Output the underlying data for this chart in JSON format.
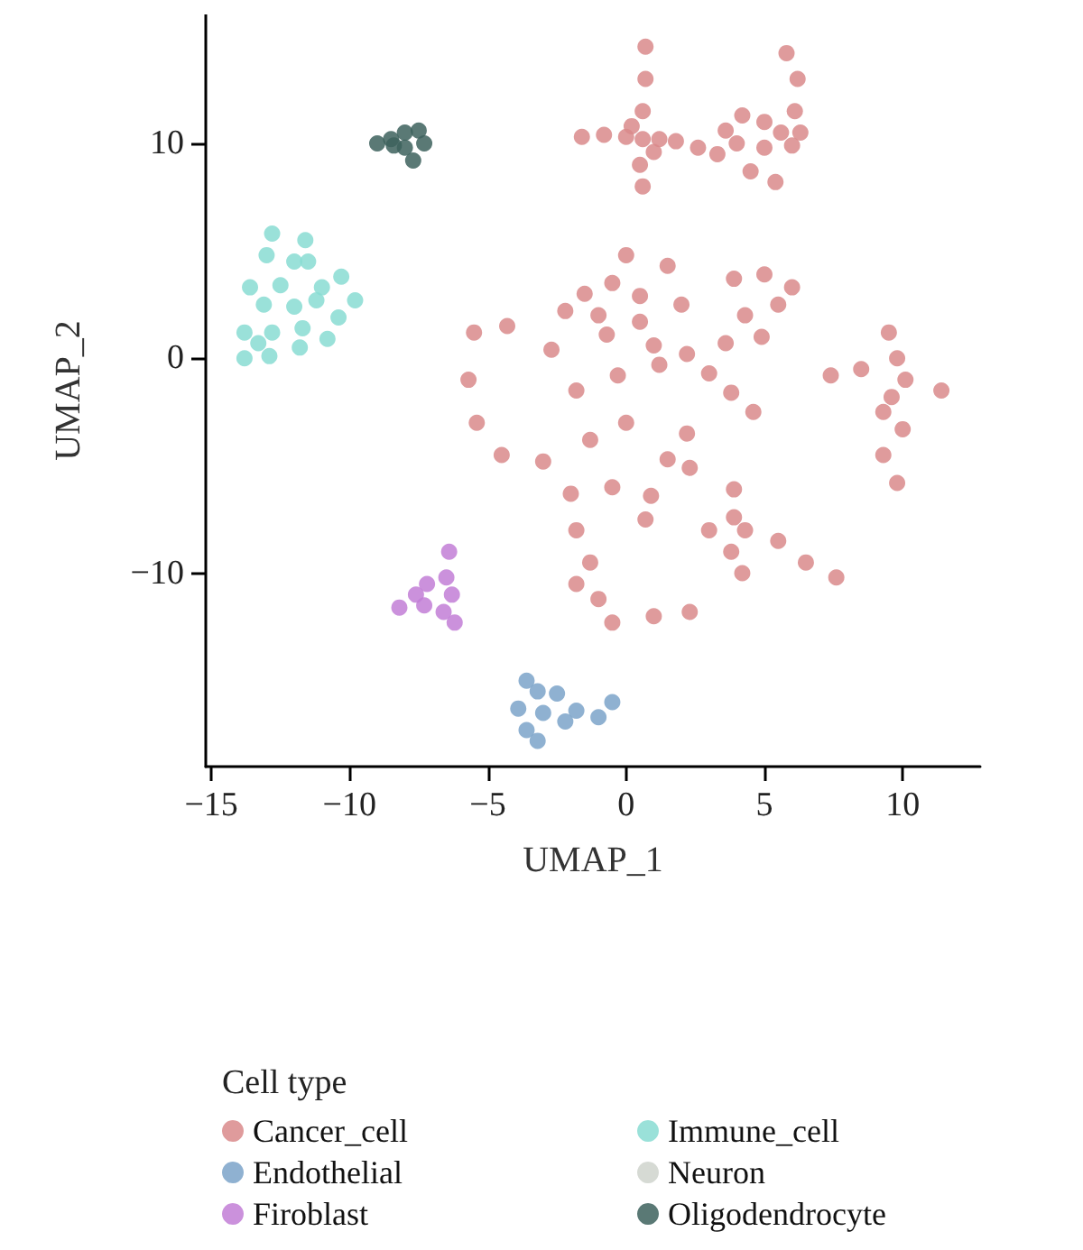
{
  "chart_data": {
    "type": "scatter",
    "xlabel": "UMAP_1",
    "ylabel": "UMAP_2",
    "legend_title": "Cell type",
    "legend": "bottom",
    "marker": "circle",
    "grid": false,
    "xlim": [
      -15.2,
      12.8
    ],
    "xticks": [
      -15,
      -10,
      -5,
      0,
      5,
      10
    ],
    "ylim": [
      -19,
      16
    ],
    "yticks": [
      -10,
      0,
      10
    ],
    "series": [
      {
        "name": "Cancer_cell",
        "color": "#d98a8b",
        "x": [
          0.7,
          0.7,
          0.6,
          0.6,
          -1.6,
          -0.8,
          0,
          1.2,
          0.5,
          0.6,
          0.2,
          1,
          1.8,
          2.6,
          3.3,
          5.8,
          6.2,
          6.1,
          4.2,
          5,
          5.6,
          4,
          5,
          6,
          4.5,
          5.4,
          3.6,
          6.3,
          -1.5,
          0,
          1.5,
          -0.5,
          -2.2,
          -1,
          0.5,
          2,
          -5.5,
          -5.7,
          -5.4,
          -4.5,
          -4.3,
          -3,
          -2.7,
          -1.8,
          -0.7,
          0.5,
          1.2,
          2.2,
          3,
          3.8,
          4.6,
          2.2,
          1.5,
          2.3,
          0,
          -1.3,
          -0.3,
          1,
          3.9,
          5,
          6,
          4.3,
          5.5,
          4.9,
          3.6,
          9.5,
          9.8,
          7.4,
          8.5,
          10.1,
          11.4,
          9.3,
          10,
          9.3,
          9.8,
          9.6,
          -2,
          -0.5,
          0.9,
          -1.8,
          0.7,
          -1.3,
          -1,
          -0.5,
          1,
          2.3,
          -1.8,
          3.9,
          3.9,
          3,
          4.3,
          5.5,
          7.6,
          6.5,
          4.2,
          3.8
        ],
        "values": [
          14.5,
          13,
          11.5,
          10.2,
          10.3,
          10.4,
          10.3,
          10.2,
          9,
          8,
          10.8,
          9.6,
          10.1,
          9.8,
          9.5,
          14.2,
          13,
          11.5,
          11.3,
          11,
          10.5,
          10,
          9.8,
          9.9,
          8.7,
          8.2,
          10.6,
          10.5,
          3,
          4.8,
          4.3,
          3.5,
          2.2,
          2,
          2.9,
          2.5,
          1.2,
          -1,
          -3,
          -4.5,
          1.5,
          -4.8,
          0.4,
          -1.5,
          1.1,
          1.7,
          -0.3,
          0.2,
          -0.7,
          -1.6,
          -2.5,
          -3.5,
          -4.7,
          -5.1,
          -3,
          -3.8,
          -0.8,
          0.6,
          3.7,
          3.9,
          3.3,
          2,
          2.5,
          1,
          0.7,
          1.2,
          0,
          -0.8,
          -0.5,
          -1,
          -1.5,
          -2.5,
          -3.3,
          -4.5,
          -5.8,
          -1.8,
          -6.3,
          -6,
          -6.4,
          -8,
          -7.5,
          -9.5,
          -11.2,
          -12.3,
          -12,
          -11.8,
          -10.5,
          -6.1,
          -7.4,
          -8,
          -8,
          -8.5,
          -10.2,
          -9.5,
          -10,
          -9
        ]
      },
      {
        "name": "Endothelial",
        "color": "#7ba3c9",
        "x": [
          -3.6,
          -3.2,
          -2.5,
          -3.9,
          -3,
          -1.8,
          -0.5,
          -1,
          -3.6,
          -3.2,
          -2.2
        ],
        "values": [
          -15,
          -15.5,
          -15.6,
          -16.3,
          -16.5,
          -16.4,
          -16,
          -16.7,
          -17.3,
          -17.8,
          -16.9
        ]
      },
      {
        "name": "Firoblast",
        "color": "#c27ed6",
        "x": [
          -6.4,
          -6.5,
          -7.2,
          -6.3,
          -8.2,
          -7.3,
          -6.6,
          -6.2,
          -7.6
        ],
        "values": [
          -9,
          -10.2,
          -10.5,
          -11,
          -11.6,
          -11.5,
          -11.8,
          -12.3,
          -11
        ]
      },
      {
        "name": "Immune_cell",
        "color": "#88dcd2",
        "x": [
          -12.8,
          -11.6,
          -11.5,
          -13,
          -12,
          -13.6,
          -12.5,
          -11,
          -10.3,
          -13.1,
          -12,
          -11.2,
          -9.8,
          -13.8,
          -12.8,
          -11.7,
          -10.4,
          -13.8,
          -12.9,
          -11.8,
          -13.3,
          -10.8
        ],
        "values": [
          5.8,
          5.5,
          4.5,
          4.8,
          4.5,
          3.3,
          3.4,
          3.3,
          3.8,
          2.5,
          2.4,
          2.7,
          2.7,
          1.2,
          1.2,
          1.4,
          1.9,
          0,
          0.1,
          0.5,
          0.7,
          0.9
        ]
      },
      {
        "name": "Neuron",
        "color": "#cfd4cc"
      },
      {
        "name": "Oligodendrocyte",
        "color": "#3d625d",
        "x": [
          -9,
          -8.5,
          -8,
          -7.5,
          -7.3,
          -8,
          -7.7,
          -8.4
        ],
        "values": [
          10,
          10.2,
          10.5,
          10.6,
          10,
          9.8,
          9.2,
          9.9
        ]
      }
    ]
  }
}
